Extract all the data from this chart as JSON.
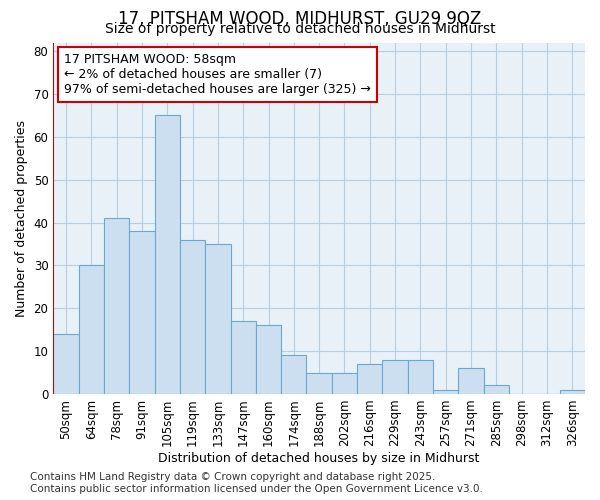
{
  "title1": "17, PITSHAM WOOD, MIDHURST, GU29 9QZ",
  "title2": "Size of property relative to detached houses in Midhurst",
  "xlabel": "Distribution of detached houses by size in Midhurst",
  "ylabel": "Number of detached properties",
  "categories": [
    "50sqm",
    "64sqm",
    "78sqm",
    "91sqm",
    "105sqm",
    "119sqm",
    "133sqm",
    "147sqm",
    "160sqm",
    "174sqm",
    "188sqm",
    "202sqm",
    "216sqm",
    "229sqm",
    "243sqm",
    "257sqm",
    "271sqm",
    "285sqm",
    "298sqm",
    "312sqm",
    "326sqm"
  ],
  "values": [
    14,
    30,
    41,
    38,
    65,
    36,
    35,
    17,
    16,
    9,
    5,
    5,
    7,
    8,
    8,
    1,
    6,
    2,
    0,
    0,
    1
  ],
  "bar_color": "#ccdff0",
  "bar_edge_color": "#6aa8d0",
  "highlight_line_color": "#cc0000",
  "annotation_text": "17 PITSHAM WOOD: 58sqm\n← 2% of detached houses are smaller (7)\n97% of semi-detached houses are larger (325) →",
  "annotation_box_color": "#ffffff",
  "annotation_box_edge_color": "#cc0000",
  "ylim": [
    0,
    82
  ],
  "yticks": [
    0,
    10,
    20,
    30,
    40,
    50,
    60,
    70,
    80
  ],
  "grid_color": "#b8cfe0",
  "plot_bg_color": "#e8f0f8",
  "fig_bg_color": "#ffffff",
  "footer_text": "Contains HM Land Registry data © Crown copyright and database right 2025.\nContains public sector information licensed under the Open Government Licence v3.0.",
  "title_fontsize": 12,
  "subtitle_fontsize": 10,
  "axis_label_fontsize": 9,
  "tick_fontsize": 8.5,
  "annotation_fontsize": 9,
  "footer_fontsize": 7.5
}
